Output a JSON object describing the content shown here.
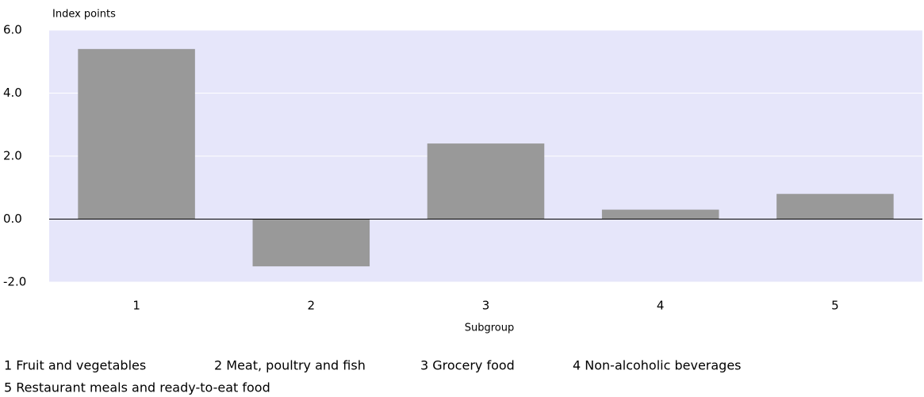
{
  "chart_data": {
    "type": "bar",
    "ylabel": "Index points",
    "xlabel": "Subgroup",
    "categories": [
      "1",
      "2",
      "3",
      "4",
      "5"
    ],
    "values": [
      5.4,
      -1.5,
      2.4,
      0.3,
      0.8
    ],
    "color": "#999999",
    "ylim": [
      -2,
      6
    ],
    "yticks": [
      {
        "value": -2,
        "label": "-2.0"
      },
      {
        "value": 0,
        "label": "0.0"
      },
      {
        "value": 2,
        "label": "2.0"
      },
      {
        "value": 4,
        "label": "4.0"
      },
      {
        "value": 6,
        "label": "6.0"
      }
    ],
    "grid": true,
    "notes": [
      "1 Fruit and vegetables",
      "2 Meat, poultry and fish",
      "3 Grocery food",
      "4 Non-alcoholic beverages",
      "5 Restaurant meals and ready-to-eat food"
    ]
  }
}
